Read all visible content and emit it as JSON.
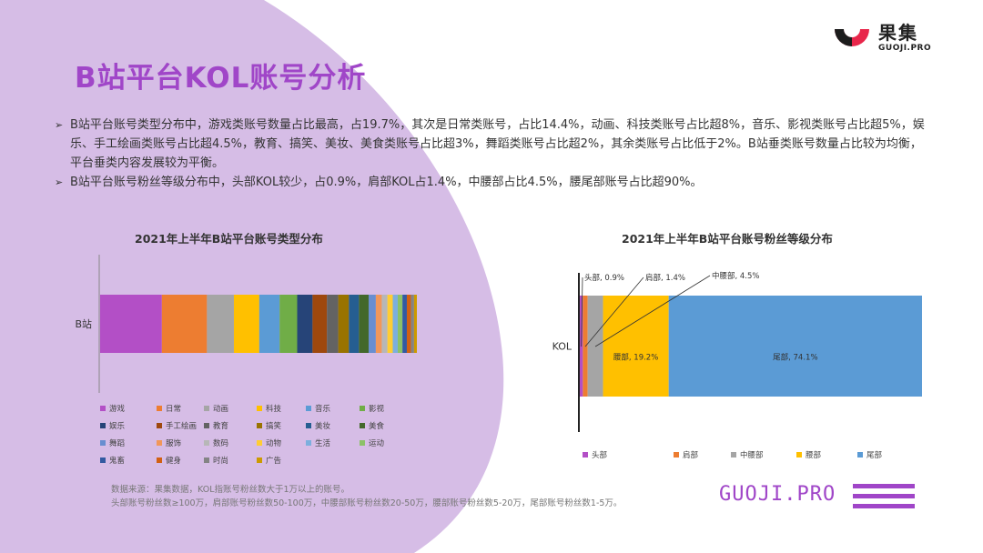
{
  "brand": {
    "name_cn": "果集",
    "name_en": "GUOJI.PRO",
    "accent": "#a046c8",
    "bg_shape_color": "#d6bde6"
  },
  "title": "B站平台KOL账号分析",
  "bullets": [
    "B站平台账号类型分布中，游戏类账号数量占比最高，占19.7%，其次是日常类账号，占比14.4%，动画、科技类账号占比超8%，音乐、影视类账号占比超5%，娱乐、手工绘画类账号占比超4.5%，教育、搞笑、美妆、美食类账号占比超3%，舞蹈类账号占比超2%，其余类账号占比低于2%。B站垂类账号数量占比较为均衡，平台垂类内容发展较为平衡。",
    "B站平台账号粉丝等级分布中，头部KOL较少，占0.9%，肩部KOL占1.4%，中腰部占比4.5%，腰尾部账号占比超90%。"
  ],
  "chart_data": [
    {
      "type": "bar",
      "orientation": "horizontal-stacked-100",
      "title": "2021年上半年B站平台账号类型分布",
      "categories": [
        "B站"
      ],
      "legend_position": "bottom",
      "series": [
        {
          "name": "游戏",
          "values": [
            19.7
          ],
          "color": "#b34fc6"
        },
        {
          "name": "日常",
          "values": [
            14.4
          ],
          "color": "#ed7d31"
        },
        {
          "name": "动画",
          "values": [
            8.6
          ],
          "color": "#a5a5a5"
        },
        {
          "name": "科技",
          "values": [
            8.1
          ],
          "color": "#ffc000"
        },
        {
          "name": "音乐",
          "values": [
            6.5
          ],
          "color": "#5b9bd5"
        },
        {
          "name": "影视",
          "values": [
            5.6
          ],
          "color": "#70ad47"
        },
        {
          "name": "娱乐",
          "values": [
            4.9
          ],
          "color": "#264478"
        },
        {
          "name": "手工绘画",
          "values": [
            4.6
          ],
          "color": "#9e480e"
        },
        {
          "name": "教育",
          "values": [
            3.6
          ],
          "color": "#636363"
        },
        {
          "name": "搞笑",
          "values": [
            3.4
          ],
          "color": "#997300"
        },
        {
          "name": "美妆",
          "values": [
            3.2
          ],
          "color": "#255e91"
        },
        {
          "name": "美食",
          "values": [
            3.1
          ],
          "color": "#43682b"
        },
        {
          "name": "舞蹈",
          "values": [
            2.3
          ],
          "color": "#698ed0"
        },
        {
          "name": "服饰",
          "values": [
            1.9
          ],
          "color": "#f1975a"
        },
        {
          "name": "数码",
          "values": [
            1.8
          ],
          "color": "#b7b7b7"
        },
        {
          "name": "动物",
          "values": [
            1.7
          ],
          "color": "#ffcd33"
        },
        {
          "name": "生活",
          "values": [
            1.6
          ],
          "color": "#7cafdd"
        },
        {
          "name": "运动",
          "values": [
            1.5
          ],
          "color": "#8cc168"
        },
        {
          "name": "鬼畜",
          "values": [
            1.4
          ],
          "color": "#335aa1"
        },
        {
          "name": "健身",
          "values": [
            1.3
          ],
          "color": "#d26012"
        },
        {
          "name": "时尚",
          "values": [
            1.0
          ],
          "color": "#848484"
        },
        {
          "name": "广告",
          "values": [
            0.9
          ],
          "color": "#cc9a00"
        }
      ]
    },
    {
      "type": "bar",
      "orientation": "horizontal-stacked-100",
      "title": "2021年上半年B站平台账号粉丝等级分布",
      "categories": [
        "KOL"
      ],
      "legend_position": "bottom",
      "series": [
        {
          "name": "头部",
          "values": [
            0.9
          ],
          "color": "#b34fc6",
          "label": "头部, 0.9%"
        },
        {
          "name": "肩部",
          "values": [
            1.4
          ],
          "color": "#ed7d31",
          "label": "肩部, 1.4%"
        },
        {
          "name": "中腰部",
          "values": [
            4.5
          ],
          "color": "#a5a5a5",
          "label": "中腰部, 4.5%"
        },
        {
          "name": "腰部",
          "values": [
            19.2
          ],
          "color": "#ffc000",
          "label": "腰部, 19.2%"
        },
        {
          "name": "尾部",
          "values": [
            74.1
          ],
          "color": "#5b9bd5",
          "label": "尾部, 74.1%"
        }
      ]
    }
  ],
  "source": {
    "line1": "数据来源：果集数据，KOL指账号粉丝数大于1万以上的账号。",
    "line2": "头部账号粉丝数≥100万，肩部账号粉丝数50-100万，中腰部账号粉丝数20-50万，腰部账号粉丝数5-20万，尾部账号粉丝数1-5万。"
  },
  "footer": {
    "brand_en": "GUOJI.PRO"
  }
}
